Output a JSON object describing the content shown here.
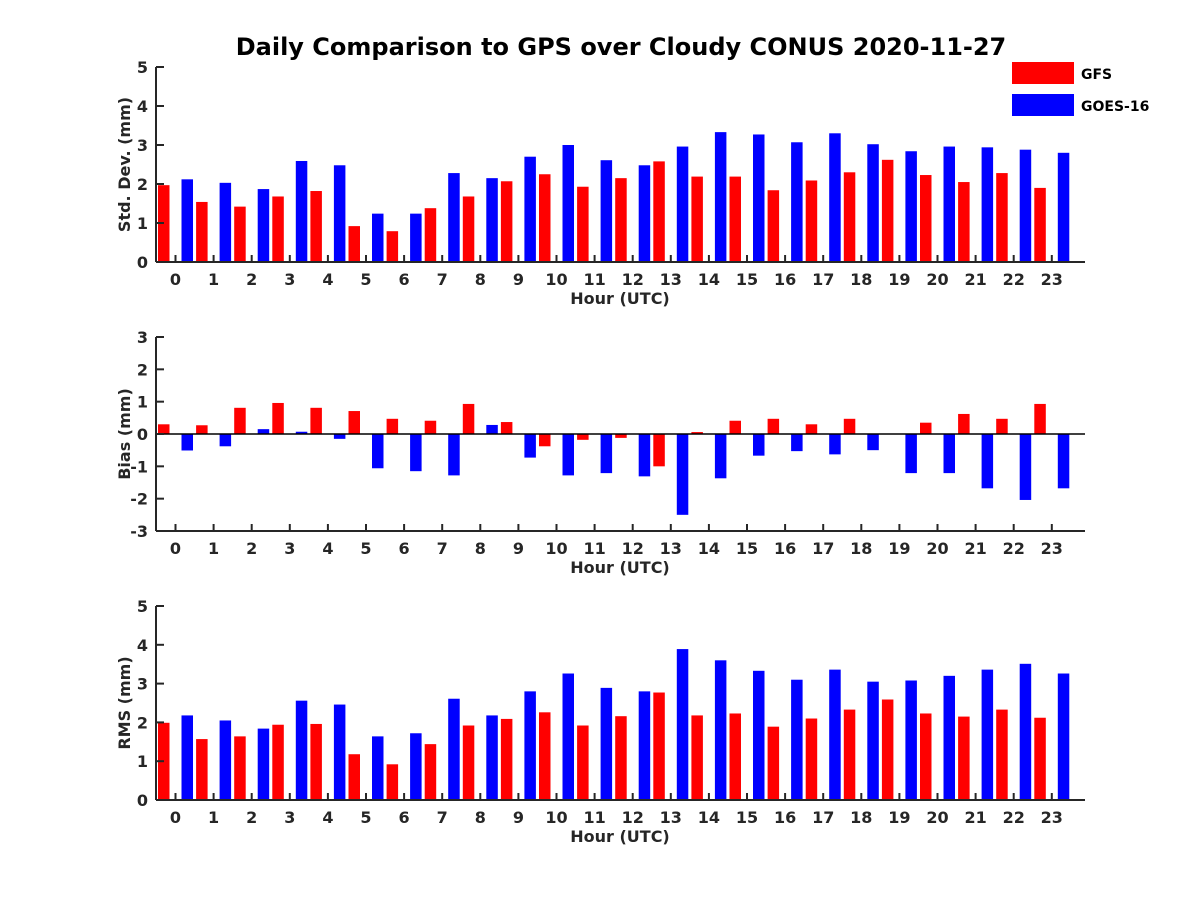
{
  "title": "Daily Comparison to GPS over Cloudy CONUS 2020-11-27",
  "legend": [
    {
      "label": "GFS",
      "color": "#ff0000"
    },
    {
      "label": "GOES-16",
      "color": "#0000ff"
    }
  ],
  "chart_data": [
    {
      "type": "bar",
      "xlabel": "Hour (UTC)",
      "ylabel": "Std. Dev. (mm)",
      "ylim": [
        0,
        5
      ],
      "yticks": [
        0,
        1,
        2,
        3,
        4,
        5
      ],
      "categories": [
        "0",
        "1",
        "2",
        "3",
        "4",
        "5",
        "6",
        "7",
        "8",
        "9",
        "10",
        "11",
        "12",
        "13",
        "14",
        "15",
        "16",
        "17",
        "18",
        "19",
        "20",
        "21",
        "22",
        "23"
      ],
      "series": [
        {
          "name": "GFS",
          "color": "#ff0000",
          "values": [
            1.97,
            1.54,
            1.42,
            1.68,
            1.82,
            0.92,
            0.79,
            1.38,
            1.68,
            2.07,
            2.25,
            1.93,
            2.15,
            2.58,
            2.19,
            2.19,
            1.84,
            2.09,
            2.3,
            2.62,
            2.23,
            2.05,
            2.28,
            1.9
          ]
        },
        {
          "name": "GOES-16",
          "color": "#0000ff",
          "values": [
            2.12,
            2.03,
            1.87,
            2.59,
            2.48,
            1.24,
            1.24,
            2.28,
            2.15,
            2.7,
            3.0,
            2.61,
            2.48,
            2.96,
            3.33,
            3.27,
            3.07,
            3.3,
            3.02,
            2.84,
            2.96,
            2.94,
            2.88,
            2.8
          ]
        }
      ]
    },
    {
      "type": "bar",
      "xlabel": "Hour (UTC)",
      "ylabel": "Bias (mm)",
      "ylim": [
        -3,
        3
      ],
      "yticks": [
        -3,
        -2,
        -1,
        0,
        1,
        2,
        3
      ],
      "categories": [
        "0",
        "1",
        "2",
        "3",
        "4",
        "5",
        "6",
        "7",
        "8",
        "9",
        "10",
        "11",
        "12",
        "13",
        "14",
        "15",
        "16",
        "17",
        "18",
        "19",
        "20",
        "21",
        "22",
        "23"
      ],
      "series": [
        {
          "name": "GFS",
          "color": "#ff0000",
          "values": [
            0.3,
            0.27,
            0.81,
            0.96,
            0.81,
            0.71,
            0.47,
            0.41,
            0.93,
            0.37,
            -0.38,
            -0.18,
            -0.12,
            -1.0,
            0.06,
            0.41,
            0.47,
            0.3,
            0.47,
            0.0,
            0.35,
            0.62,
            0.47,
            0.93
          ]
        },
        {
          "name": "GOES-16",
          "color": "#0000ff",
          "values": [
            -0.51,
            -0.38,
            0.15,
            0.07,
            -0.15,
            -1.06,
            -1.15,
            -1.28,
            0.28,
            -0.73,
            -1.28,
            -1.21,
            -1.31,
            -2.5,
            -1.37,
            -0.67,
            -0.53,
            -0.63,
            -0.5,
            -1.21,
            -1.21,
            -1.68,
            -2.04,
            -1.68
          ]
        }
      ]
    },
    {
      "type": "bar",
      "xlabel": "Hour (UTC)",
      "ylabel": "RMS (mm)",
      "ylim": [
        0,
        5
      ],
      "yticks": [
        0,
        1,
        2,
        3,
        4,
        5
      ],
      "categories": [
        "0",
        "1",
        "2",
        "3",
        "4",
        "5",
        "6",
        "7",
        "8",
        "9",
        "10",
        "11",
        "12",
        "13",
        "14",
        "15",
        "16",
        "17",
        "18",
        "19",
        "20",
        "21",
        "22",
        "23"
      ],
      "series": [
        {
          "name": "GFS",
          "color": "#ff0000",
          "values": [
            1.99,
            1.57,
            1.64,
            1.94,
            1.96,
            1.18,
            0.92,
            1.44,
            1.92,
            2.09,
            2.26,
            1.92,
            2.16,
            2.77,
            2.18,
            2.23,
            1.89,
            2.1,
            2.33,
            2.59,
            2.23,
            2.15,
            2.33,
            2.12
          ]
        },
        {
          "name": "GOES-16",
          "color": "#0000ff",
          "values": [
            2.18,
            2.05,
            1.84,
            2.56,
            2.46,
            1.64,
            1.72,
            2.61,
            2.18,
            2.8,
            3.26,
            2.89,
            2.8,
            3.89,
            3.6,
            3.33,
            3.1,
            3.36,
            3.05,
            3.08,
            3.2,
            3.36,
            3.51,
            3.26
          ]
        }
      ]
    }
  ]
}
